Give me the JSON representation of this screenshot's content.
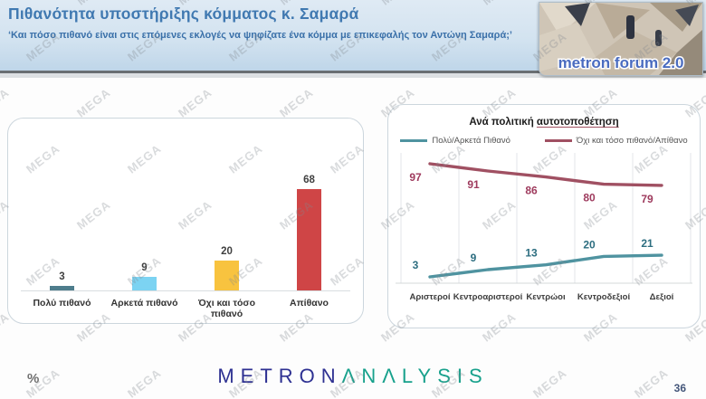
{
  "header": {
    "title": "Πιθανότητα υποστήριξης κόμματος κ. Σαμαρά",
    "subtitle": "‘Και πόσο πιθανό είναι στις επόμενες εκλογές να ψηφίζατε ένα κόμμα με επικεφαλής τον Αντώνη Σαμαρά;’",
    "brand_image_text": "metron forum 2.0"
  },
  "watermark": {
    "text": "MEGA"
  },
  "chart_data": [
    {
      "type": "bar",
      "title": "",
      "categories": [
        "Πολύ πιθανό",
        "Αρκετά πιθανό",
        "Όχι και τόσο πιθανό",
        "Απίθανο"
      ],
      "values": [
        3,
        9,
        20,
        68
      ],
      "bar_colors": [
        "#4e7d8c",
        "#7cd3f2",
        "#f8c33f",
        "#cf4546"
      ],
      "xlabel": "",
      "ylabel": "",
      "ylim": [
        0,
        100
      ],
      "grid": false,
      "data_labels": true,
      "legend_position": "none"
    },
    {
      "type": "line",
      "title_prefix": "Ανά πολιτική ",
      "title_underlined": "αυτοτοποθέτηση",
      "categories": [
        "Αριστεροί",
        "Κεντροαριστεροί",
        "Κεντρώοι",
        "Κεντροδεξιοί",
        "Δεξιοί"
      ],
      "series": [
        {
          "name": "Πολύ/Αρκετά Πιθανό",
          "values": [
            3,
            9,
            13,
            20,
            21
          ],
          "color": "#4f93a0",
          "label_color": "#2d6e80"
        },
        {
          "name": "Όχι και τόσο πιθανό/Απίθανο",
          "values": [
            97,
            91,
            86,
            80,
            79
          ],
          "color": "#a05062",
          "label_color": "#9e3a5d"
        }
      ],
      "xlabel": "",
      "ylabel": "",
      "ylim": [
        0,
        110
      ],
      "grid": "vertical",
      "data_labels": true,
      "legend_position": "top"
    }
  ],
  "footer": {
    "percent_label": "%",
    "logo_metron": "METRON",
    "logo_analysis": "ΛNΛLYSIS",
    "page_number": "36"
  }
}
